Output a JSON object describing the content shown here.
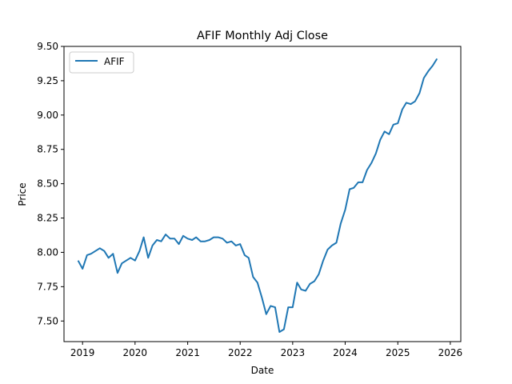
{
  "chart_data": {
    "type": "line",
    "title": "AFIF Monthly Adj Close",
    "xlabel": "Date",
    "ylabel": "Price",
    "xlim": [
      "2018-08-25",
      "2026-03-15"
    ],
    "ylim": [
      7.35,
      9.5
    ],
    "x_ticks": [
      "2019-01-01",
      "2020-01-01",
      "2021-01-01",
      "2022-01-01",
      "2023-01-01",
      "2024-01-01",
      "2025-01-01",
      "2026-01-01"
    ],
    "x_tick_labels": [
      "2019",
      "2020",
      "2021",
      "2022",
      "2023",
      "2024",
      "2025",
      "2026"
    ],
    "y_ticks": [
      7.5,
      7.75,
      8.0,
      8.25,
      8.5,
      8.75,
      9.0,
      9.25,
      9.5
    ],
    "y_tick_labels": [
      "7.50",
      "7.75",
      "8.00",
      "8.25",
      "8.50",
      "8.75",
      "9.00",
      "9.25",
      "9.50"
    ],
    "grid": false,
    "legend_position": "top-left",
    "colors": {
      "series": "#1f77b4",
      "axes": "#000000",
      "background": "#ffffff"
    },
    "series": [
      {
        "name": "AFIF",
        "x": [
          "2018-12-01",
          "2019-01-01",
          "2019-02-01",
          "2019-03-01",
          "2019-04-01",
          "2019-05-01",
          "2019-06-01",
          "2019-07-01",
          "2019-08-01",
          "2019-09-01",
          "2019-10-01",
          "2019-11-01",
          "2019-12-01",
          "2020-01-01",
          "2020-02-01",
          "2020-03-01",
          "2020-04-01",
          "2020-05-01",
          "2020-06-01",
          "2020-07-01",
          "2020-08-01",
          "2020-09-01",
          "2020-10-01",
          "2020-11-01",
          "2020-12-01",
          "2021-01-01",
          "2021-02-01",
          "2021-03-01",
          "2021-04-01",
          "2021-05-01",
          "2021-06-01",
          "2021-07-01",
          "2021-08-01",
          "2021-09-01",
          "2021-10-01",
          "2021-11-01",
          "2021-12-01",
          "2022-01-01",
          "2022-02-01",
          "2022-03-01",
          "2022-04-01",
          "2022-05-01",
          "2022-06-01",
          "2022-07-01",
          "2022-08-01",
          "2022-09-01",
          "2022-10-01",
          "2022-11-01",
          "2022-12-01",
          "2023-01-01",
          "2023-02-01",
          "2023-03-01",
          "2023-04-01",
          "2023-05-01",
          "2023-06-01",
          "2023-07-01",
          "2023-08-01",
          "2023-09-01",
          "2023-10-01",
          "2023-11-01",
          "2023-12-01",
          "2024-01-01",
          "2024-02-01",
          "2024-03-01",
          "2024-04-01",
          "2024-05-01",
          "2024-06-01",
          "2024-07-01",
          "2024-08-01",
          "2024-09-01",
          "2024-10-01",
          "2024-11-01",
          "2024-12-01",
          "2025-01-01",
          "2025-02-01",
          "2025-03-01",
          "2025-04-01",
          "2025-05-01",
          "2025-06-01",
          "2025-07-01",
          "2025-08-01",
          "2025-09-01",
          "2025-10-01"
        ],
        "y": [
          7.94,
          7.88,
          7.98,
          7.99,
          8.01,
          8.03,
          8.01,
          7.96,
          7.99,
          7.85,
          7.92,
          7.94,
          7.96,
          7.94,
          8.01,
          8.11,
          7.96,
          8.05,
          8.09,
          8.08,
          8.13,
          8.1,
          8.1,
          8.06,
          8.12,
          8.1,
          8.09,
          8.11,
          8.08,
          8.08,
          8.09,
          8.11,
          8.11,
          8.1,
          8.07,
          8.08,
          8.05,
          8.06,
          7.98,
          7.96,
          7.82,
          7.78,
          7.67,
          7.55,
          7.61,
          7.6,
          7.42,
          7.44,
          7.6,
          7.6,
          7.78,
          7.73,
          7.72,
          7.77,
          7.79,
          7.84,
          7.94,
          8.02,
          8.05,
          8.07,
          8.21,
          8.31,
          8.46,
          8.47,
          8.51,
          8.51,
          8.6,
          8.65,
          8.72,
          8.82,
          8.88,
          8.86,
          8.93,
          8.94,
          9.04,
          9.09,
          9.08,
          9.1,
          9.16,
          9.27,
          9.32,
          9.36,
          9.41
        ]
      }
    ]
  }
}
